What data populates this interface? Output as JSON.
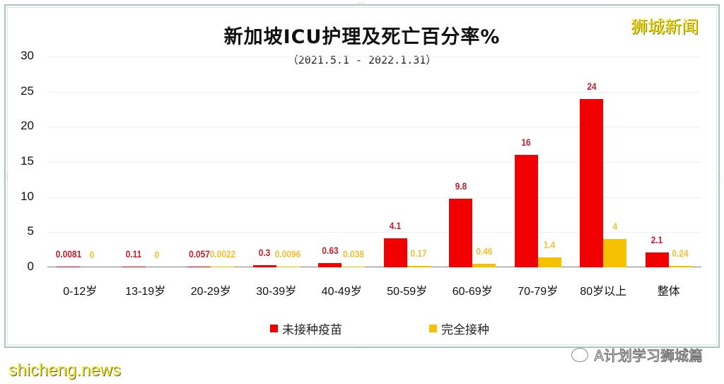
{
  "title": "新加坡ICU护理及死亡百分率%",
  "subtitle": "（2021.5.1 - 2022.1.31）",
  "watermark_top": "狮城新闻",
  "watermark_bottom": "shicheng.news",
  "wechat_label": "A计划学习狮城篇",
  "colors": {
    "unvaccinated": "#f00000",
    "fully_vaccinated": "#f5c000"
  },
  "legend": [
    {
      "label": "未接种疫苗",
      "color": "#f00000"
    },
    {
      "label": "完全接种",
      "color": "#f5c000"
    }
  ],
  "y_ticks": [
    "30",
    "25",
    "20",
    "15",
    "10",
    "5",
    "0"
  ],
  "chart_data": {
    "type": "bar",
    "title": "新加坡ICU护理及死亡百分率%",
    "subtitle": "（2021.5.1 - 2022.1.31）",
    "xlabel": "",
    "ylabel": "",
    "ylim": [
      0,
      30
    ],
    "y_ticks": [
      0,
      5,
      10,
      15,
      20,
      25,
      30
    ],
    "grid": true,
    "legend_position": "bottom",
    "categories": [
      "0-12岁",
      "13-19岁",
      "20-29岁",
      "30-39岁",
      "40-49岁",
      "50-59岁",
      "60-69岁",
      "70-79岁",
      "80岁以上",
      "整体"
    ],
    "series": [
      {
        "name": "未接种疫苗",
        "color": "#f00000",
        "values": [
          0.0081,
          0.11,
          0.057,
          0.3,
          0.63,
          4.1,
          9.8,
          16,
          24,
          2.1
        ],
        "labels": [
          "0.0081",
          "0.11",
          "0.057",
          "0.3",
          "0.63",
          "4.1",
          "9.8",
          "16",
          "24",
          "2.1"
        ]
      },
      {
        "name": "完全接种",
        "color": "#f5c000",
        "values": [
          0,
          0,
          0.0022,
          0.0096,
          0.038,
          0.17,
          0.46,
          1.4,
          4,
          0.24
        ],
        "labels": [
          "0",
          "0",
          "0.0022",
          "0.0096",
          "0.038",
          "0.17",
          "0.46",
          "1.4",
          "4",
          "0.24"
        ]
      }
    ]
  }
}
